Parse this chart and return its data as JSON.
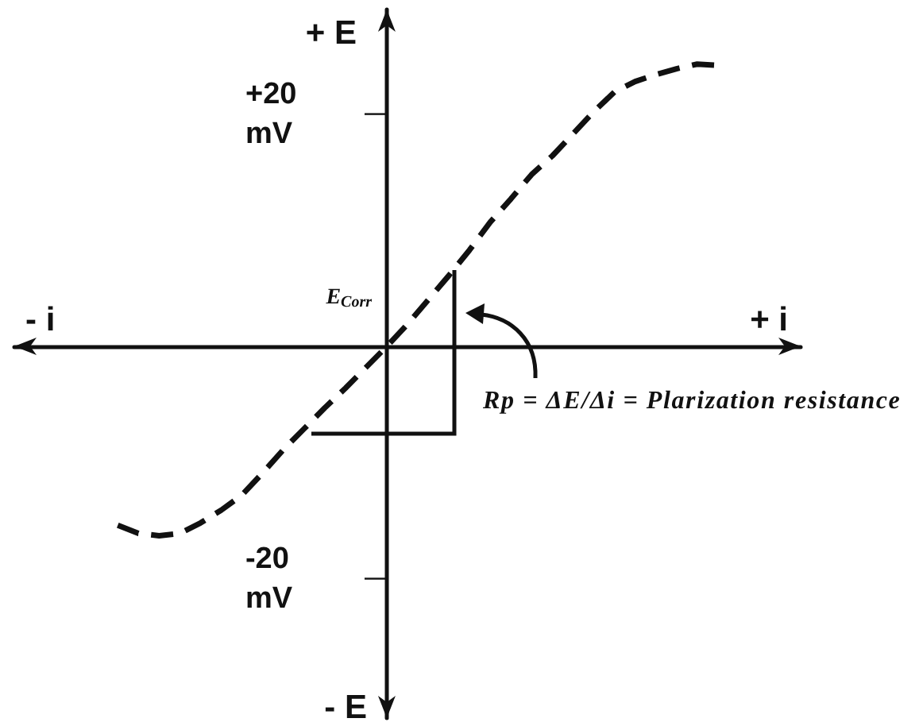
{
  "chart_data": {
    "type": "line",
    "ylabel": "+ E",
    "xlabel": "+ i",
    "annotations": [
      "- E",
      "- i",
      "E$_{Corr}$",
      "Rp = ΔE/Δi = Plarization resistance"
    ],
    "categories": [
      null,
      null,
      null,
      null,
      null,
      null,
      null,
      null,
      null,
      null,
      null,
      null,
      null,
      null,
      null,
      null,
      null,
      null,
      null,
      null,
      null,
      null,
      null,
      null,
      null,
      null,
      null,
      null,
      null,
      null,
      null,
      null,
      null,
      null,
      null,
      null,
      null,
      null,
      null
    ],
    "values": [
      null,
      null,
      null,
      null,
      null,
      -15.4,
      -16.1,
      -16.3,
      -16.1,
      -15.2,
      -14.1,
      -12.8,
      -10.9,
      -8.9,
      -7.1,
      -5.3,
      -3.6,
      -1.8,
      0,
      1.9,
      4.0,
      6.1,
      8.3,
      10.7,
      12.7,
      14.8,
      16.4,
      18.3,
      20.2,
      21.9,
      22.8,
      23.4,
      23.9,
      24.3,
      24.2,
      null,
      null,
      null,
      null
    ],
    "color": "#111111",
    "ylim": [
      -32,
      29
    ],
    "yticks": [
      {
        "value": 20,
        "label": "+20 mV"
      },
      {
        "value": -20,
        "label": "-20 mV"
      }
    ],
    "tick_labels": "y",
    "marker": "none",
    "line_style": "dashed"
  }
}
